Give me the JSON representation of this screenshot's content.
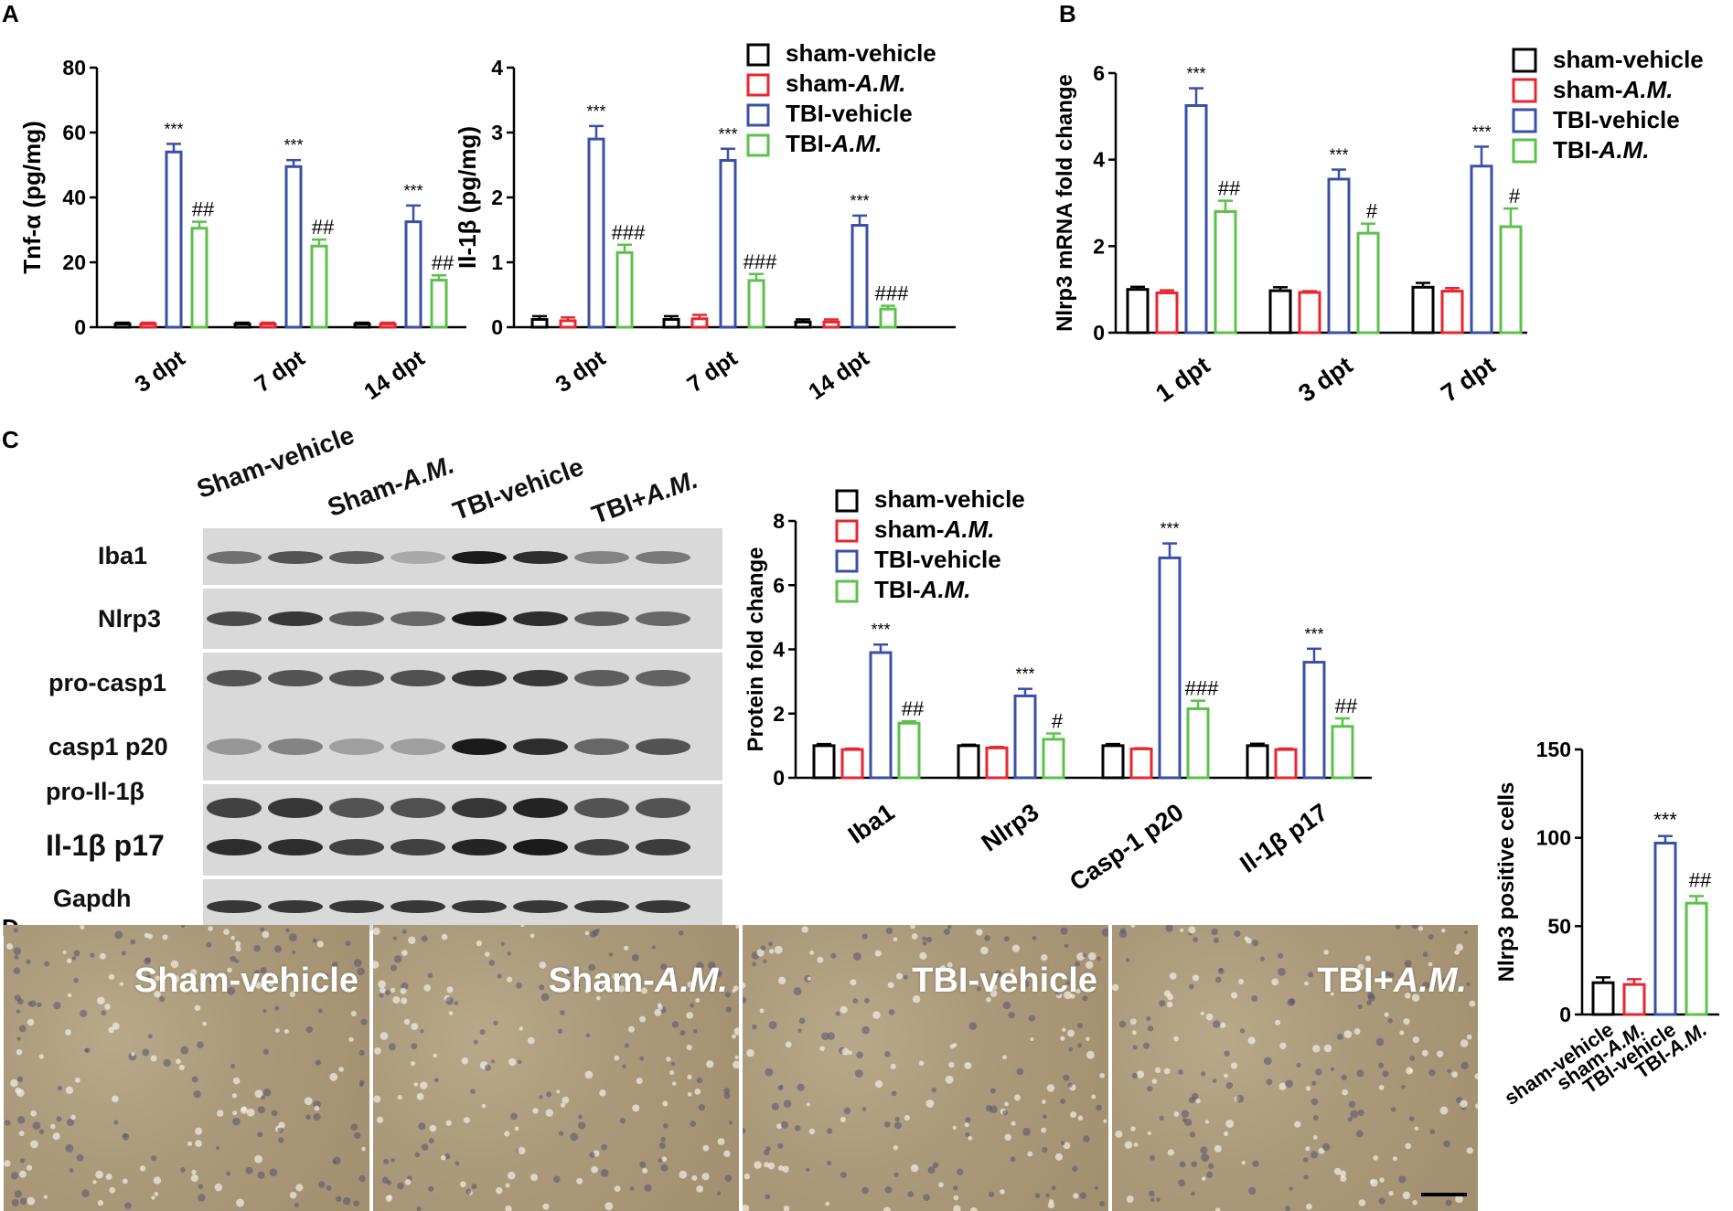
{
  "panel_letters": {
    "a": "A",
    "b": "B",
    "c": "C",
    "d": "D"
  },
  "colors": {
    "sham_vehicle": "#000000",
    "sham_am": "#e8262f",
    "tbi_vehicle": "#3a4fa8",
    "tbi_am": "#5cc14a"
  },
  "legend_parts": {
    "sham_vehicle": [
      "sham-vehicle",
      ""
    ],
    "sham_am": [
      "sham-",
      "A.M."
    ],
    "tbi_vehicle": [
      "TBI-vehicle",
      ""
    ],
    "tbi_am": [
      "TBI-",
      "A.M."
    ]
  },
  "western_blot": {
    "lane_labels": [
      {
        "text": "Sham-vehicle"
      },
      {
        "text": "Sham-",
        "italic": "A.M."
      },
      {
        "text": "TBI-vehicle"
      },
      {
        "text": "TBI+",
        "italic": "A.M."
      }
    ],
    "row_labels": [
      "Iba1",
      "Nlrp3",
      "pro-casp1",
      "casp1 p20",
      "pro-Il-1β",
      "Il-1β p17",
      "Gapdh"
    ]
  },
  "micrographs": [
    {
      "text": "Sham-vehicle",
      "italic": ""
    },
    {
      "text": "Sham-",
      "italic": "A.M."
    },
    {
      "text": "TBI-vehicle",
      "italic": ""
    },
    {
      "text": "TBI+",
      "italic": "A.M."
    }
  ],
  "chart_data": [
    {
      "id": "tnf",
      "type": "bar",
      "ylabel": "Tnf-α (pg/mg)",
      "ylim": [
        0,
        80
      ],
      "yticks": [
        0,
        20,
        40,
        60,
        80
      ],
      "categories": [
        "3 dpt",
        "7 dpt",
        "14 dpt"
      ],
      "series": [
        {
          "name": "sham-vehicle",
          "values": [
            1,
            1,
            1
          ],
          "errors": [
            0.4,
            0.4,
            0.4
          ]
        },
        {
          "name": "sham-A.M.",
          "values": [
            1,
            1,
            1
          ],
          "errors": [
            0.4,
            0.4,
            0.4
          ]
        },
        {
          "name": "TBI-vehicle",
          "values": [
            54,
            49.5,
            32.5
          ],
          "errors": [
            2.5,
            2,
            5
          ]
        },
        {
          "name": "TBI-A.M.",
          "values": [
            30.5,
            25,
            14.5
          ],
          "errors": [
            2,
            2,
            1.5
          ]
        }
      ],
      "annotations": [
        [
          "",
          "",
          "***",
          "##"
        ],
        [
          "",
          "",
          "***",
          "##"
        ],
        [
          "",
          "",
          "***",
          "##"
        ]
      ]
    },
    {
      "id": "il1b",
      "type": "bar",
      "ylabel": "Il-1β (pg/mg)",
      "ylim": [
        0,
        4
      ],
      "yticks": [
        0,
        1,
        2,
        3,
        4
      ],
      "categories": [
        "3 dpt",
        "7 dpt",
        "14 dpt"
      ],
      "series": [
        {
          "name": "sham-vehicle",
          "values": [
            0.12,
            0.12,
            0.08
          ],
          "errors": [
            0.05,
            0.05,
            0.04
          ]
        },
        {
          "name": "sham-A.M.",
          "values": [
            0.1,
            0.13,
            0.08
          ],
          "errors": [
            0.05,
            0.06,
            0.04
          ]
        },
        {
          "name": "TBI-vehicle",
          "values": [
            2.9,
            2.57,
            1.57
          ],
          "errors": [
            0.2,
            0.18,
            0.15
          ]
        },
        {
          "name": "TBI-A.M.",
          "values": [
            1.15,
            0.72,
            0.28
          ],
          "errors": [
            0.12,
            0.1,
            0.05
          ]
        }
      ],
      "annotations": [
        [
          "",
          "",
          "***",
          "###"
        ],
        [
          "",
          "",
          "***",
          "###"
        ],
        [
          "",
          "",
          "***",
          "###"
        ]
      ]
    },
    {
      "id": "nlrp3mrna",
      "type": "bar",
      "ylabel": "Nlrp3 mRNA fold change",
      "ylim": [
        0,
        6
      ],
      "yticks": [
        0,
        2,
        4,
        6
      ],
      "categories": [
        "1 dpt",
        "3 dpt",
        "7 dpt"
      ],
      "series": [
        {
          "name": "sham-vehicle",
          "values": [
            1,
            0.97,
            1.05
          ],
          "errors": [
            0.06,
            0.08,
            0.1
          ]
        },
        {
          "name": "sham-A.M.",
          "values": [
            0.92,
            0.93,
            0.96
          ],
          "errors": [
            0.06,
            0.03,
            0.07
          ]
        },
        {
          "name": "TBI-vehicle",
          "values": [
            5.25,
            3.55,
            3.85
          ],
          "errors": [
            0.4,
            0.22,
            0.45
          ]
        },
        {
          "name": "TBI-A.M.",
          "values": [
            2.8,
            2.3,
            2.45
          ],
          "errors": [
            0.25,
            0.22,
            0.42
          ]
        }
      ],
      "annotations": [
        [
          "",
          "",
          "***",
          "##"
        ],
        [
          "",
          "",
          "***",
          "#"
        ],
        [
          "",
          "",
          "***",
          "#"
        ]
      ]
    },
    {
      "id": "protein",
      "type": "bar",
      "ylabel": "Protein fold change",
      "ylim": [
        0,
        8
      ],
      "yticks": [
        0,
        2,
        4,
        6,
        8
      ],
      "categories": [
        "Iba1",
        "Nlrp3",
        "Casp-1 p20",
        "Il-1β p17"
      ],
      "series": [
        {
          "name": "sham-vehicle",
          "values": [
            1,
            1,
            1,
            1
          ],
          "errors": [
            0.05,
            0.03,
            0.05,
            0.06
          ]
        },
        {
          "name": "sham-A.M.",
          "values": [
            0.88,
            0.93,
            0.9,
            0.88
          ],
          "errors": [
            0.03,
            0.03,
            0.02,
            0.03
          ]
        },
        {
          "name": "TBI-vehicle",
          "values": [
            3.9,
            2.55,
            6.85,
            3.6
          ],
          "errors": [
            0.25,
            0.22,
            0.45,
            0.42
          ]
        },
        {
          "name": "TBI-A.M.",
          "values": [
            1.7,
            1.2,
            2.15,
            1.6
          ],
          "errors": [
            0.06,
            0.18,
            0.25,
            0.25
          ]
        }
      ],
      "annotations": [
        [
          "",
          "",
          "***",
          "##"
        ],
        [
          "",
          "",
          "***",
          "#"
        ],
        [
          "",
          "",
          "***",
          "###"
        ],
        [
          "",
          "",
          "***",
          "##"
        ]
      ]
    },
    {
      "id": "positive",
      "type": "bar",
      "ylabel": "Nlrp3 positive cells",
      "ylim": [
        0,
        150
      ],
      "yticks": [
        0,
        50,
        100,
        150
      ],
      "categories": [
        "sham-vehicle",
        "sham-A.M.",
        "TBI-vehicle",
        "TBI-A.M."
      ],
      "values": [
        18,
        17,
        97,
        63
      ],
      "errors": [
        3,
        3,
        4,
        4
      ],
      "annotations": [
        "",
        "",
        "***",
        "##"
      ]
    }
  ]
}
